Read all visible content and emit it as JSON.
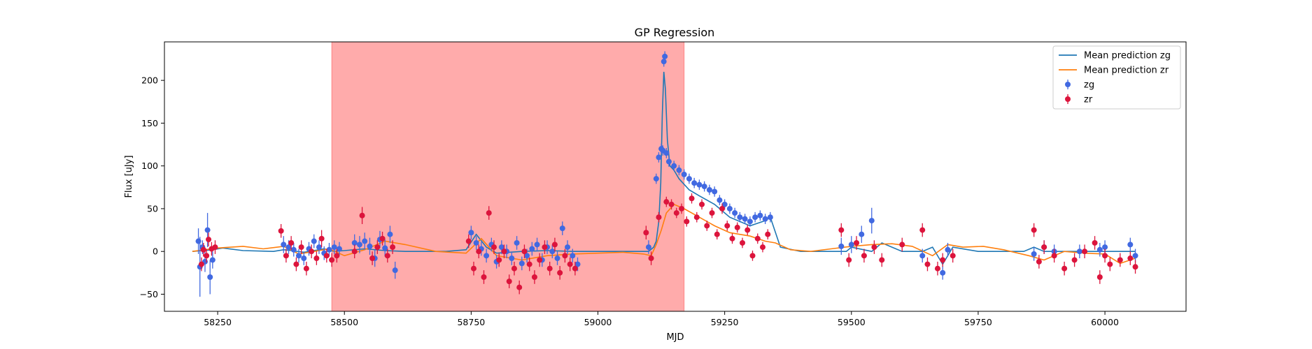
{
  "chart_data": {
    "type": "scatter",
    "title": "GP Regression",
    "xlabel": "MJD",
    "ylabel": "Flux [uJy]",
    "xlim": [
      58145,
      60160
    ],
    "ylim": [
      -70,
      245
    ],
    "xticks": [
      58250,
      58500,
      58750,
      59000,
      59250,
      59500,
      59750,
      60000
    ],
    "yticks": [
      -50,
      0,
      50,
      100,
      150,
      200
    ],
    "grid": false,
    "legend_position": "top-right",
    "shaded_region": {
      "x_start": 58475,
      "x_end": 59170,
      "color": "#ff0000",
      "opacity": 0.33
    },
    "series": [
      {
        "name": "Mean prediction zg",
        "kind": "line",
        "color": "#1f77b4",
        "x": [
          58200,
          58240,
          58260,
          58300,
          58360,
          58380,
          58395,
          58420,
          58440,
          58460,
          58480,
          58500,
          58540,
          58580,
          58620,
          58700,
          58740,
          58760,
          58780,
          58800,
          58850,
          58900,
          58950,
          59000,
          59050,
          59090,
          59100,
          59110,
          59115,
          59120,
          59124,
          59127,
          59130,
          59133,
          59137,
          59142,
          59150,
          59160,
          59180,
          59200,
          59230,
          59260,
          59300,
          59330,
          59340,
          59360,
          59400,
          59450,
          59490,
          59500,
          59540,
          59560,
          59600,
          59640,
          59660,
          59680,
          59700,
          59750,
          59800,
          59840,
          59860,
          59880,
          59900,
          59950,
          60000,
          60020,
          60060
        ],
        "y": [
          0,
          2,
          4,
          1,
          0,
          2,
          1,
          -1,
          1,
          3,
          0,
          1,
          3,
          1,
          0,
          0,
          2,
          20,
          5,
          -2,
          0,
          1,
          0,
          0,
          0,
          0,
          0,
          5,
          12,
          35,
          80,
          160,
          210,
          190,
          130,
          100,
          95,
          85,
          72,
          65,
          55,
          40,
          30,
          36,
          40,
          5,
          0,
          0,
          0,
          5,
          0,
          10,
          0,
          0,
          5,
          -15,
          5,
          0,
          0,
          0,
          5,
          0,
          0,
          0,
          0,
          0,
          0
        ]
      },
      {
        "name": "Mean prediction zr",
        "kind": "line",
        "color": "#ff7f0e",
        "x": [
          58200,
          58250,
          58300,
          58340,
          58380,
          58410,
          58440,
          58470,
          58500,
          58540,
          58580,
          58620,
          58680,
          58740,
          58770,
          58800,
          58850,
          58900,
          58950,
          59000,
          59050,
          59090,
          59105,
          59115,
          59125,
          59135,
          59150,
          59170,
          59200,
          59230,
          59260,
          59300,
          59330,
          59350,
          59380,
          59420,
          59460,
          59500,
          59540,
          59580,
          59620,
          59660,
          59690,
          59720,
          59760,
          59800,
          59850,
          59880,
          59920,
          59960,
          60000,
          60030,
          60060
        ],
        "y": [
          0,
          4,
          6,
          3,
          6,
          -3,
          0,
          3,
          -5,
          2,
          12,
          8,
          0,
          -2,
          15,
          -5,
          -10,
          -5,
          -3,
          -2,
          -1,
          -3,
          -5,
          8,
          25,
          45,
          55,
          50,
          40,
          30,
          22,
          18,
          12,
          10,
          2,
          0,
          3,
          6,
          8,
          9,
          6,
          -5,
          8,
          5,
          6,
          2,
          -5,
          -10,
          0,
          -2,
          -3,
          -14,
          -8
        ]
      },
      {
        "name": "zg",
        "kind": "errorbar-scatter",
        "color": "#4169e1",
        "x": [
          58212,
          58215,
          58220,
          58225,
          58230,
          58235,
          58240,
          58380,
          58390,
          58400,
          58410,
          58420,
          58430,
          58440,
          58450,
          58460,
          58470,
          58480,
          58490,
          58520,
          58530,
          58540,
          58550,
          58560,
          58570,
          58580,
          58590,
          58600,
          58750,
          58760,
          58770,
          58780,
          58790,
          58800,
          58810,
          58820,
          58830,
          58840,
          58850,
          58860,
          58870,
          58880,
          58890,
          58900,
          58910,
          58920,
          58930,
          58940,
          58950,
          58960,
          59100,
          59115,
          59120,
          59125,
          59128,
          59130,
          59132,
          59135,
          59140,
          59150,
          59160,
          59170,
          59180,
          59190,
          59200,
          59210,
          59220,
          59230,
          59240,
          59250,
          59260,
          59270,
          59280,
          59290,
          59300,
          59310,
          59320,
          59330,
          59340,
          59480,
          59500,
          59520,
          59540,
          59640,
          59680,
          59690,
          59860,
          59880,
          59900,
          59950,
          59990,
          60000,
          60050,
          60060
        ],
        "y": [
          12,
          -18,
          5,
          -12,
          25,
          -30,
          -10,
          8,
          5,
          2,
          -5,
          -8,
          3,
          12,
          5,
          -2,
          2,
          5,
          3,
          10,
          8,
          12,
          6,
          -8,
          14,
          4,
          20,
          -22,
          22,
          10,
          3,
          -5,
          8,
          -12,
          5,
          0,
          -8,
          10,
          -14,
          -5,
          3,
          8,
          -10,
          5,
          0,
          -8,
          27,
          5,
          -5,
          -15,
          5,
          85,
          110,
          120,
          118,
          222,
          228,
          115,
          105,
          100,
          95,
          90,
          85,
          80,
          78,
          76,
          72,
          70,
          60,
          55,
          50,
          45,
          40,
          38,
          35,
          40,
          42,
          38,
          40,
          6,
          8,
          20,
          36,
          -5,
          -25,
          2,
          -3,
          5,
          0,
          0,
          2,
          5,
          8,
          -5
        ],
        "err": [
          15,
          35,
          8,
          12,
          20,
          20,
          10,
          10,
          8,
          8,
          8,
          8,
          8,
          8,
          8,
          8,
          8,
          8,
          8,
          10,
          10,
          10,
          10,
          10,
          10,
          10,
          10,
          10,
          8,
          8,
          8,
          8,
          8,
          8,
          8,
          8,
          8,
          8,
          8,
          8,
          8,
          8,
          8,
          8,
          8,
          8,
          8,
          8,
          8,
          8,
          8,
          6,
          6,
          6,
          6,
          6,
          6,
          6,
          6,
          6,
          6,
          6,
          6,
          6,
          6,
          6,
          6,
          6,
          6,
          6,
          6,
          6,
          6,
          6,
          6,
          6,
          6,
          6,
          6,
          10,
          10,
          10,
          15,
          8,
          8,
          8,
          8,
          8,
          8,
          8,
          8,
          8,
          8,
          8
        ]
      },
      {
        "name": "zr",
        "kind": "errorbar-scatter",
        "color": "#dc143c",
        "x": [
          58218,
          58222,
          58228,
          58232,
          58238,
          58245,
          58375,
          58385,
          58395,
          58405,
          58415,
          58425,
          58435,
          58445,
          58455,
          58465,
          58475,
          58485,
          58520,
          58535,
          58555,
          58565,
          58575,
          58585,
          58595,
          58745,
          58755,
          58765,
          58775,
          58785,
          58795,
          58805,
          58815,
          58825,
          58835,
          58845,
          58855,
          58865,
          58875,
          58885,
          58895,
          58905,
          58915,
          58925,
          58935,
          58945,
          58955,
          59095,
          59105,
          59120,
          59135,
          59145,
          59155,
          59165,
          59175,
          59185,
          59195,
          59205,
          59215,
          59225,
          59235,
          59245,
          59255,
          59265,
          59275,
          59285,
          59295,
          59305,
          59315,
          59325,
          59335,
          59480,
          59495,
          59510,
          59525,
          59545,
          59560,
          59600,
          59640,
          59650,
          59670,
          59680,
          59700,
          59860,
          59870,
          59880,
          59900,
          59920,
          59940,
          59960,
          59980,
          59990,
          60000,
          60010,
          60030,
          60050,
          60060
        ],
        "y": [
          -15,
          2,
          -5,
          14,
          3,
          5,
          24,
          -5,
          10,
          -15,
          5,
          -20,
          0,
          -8,
          15,
          -5,
          -10,
          -5,
          0,
          42,
          -8,
          5,
          15,
          -5,
          5,
          12,
          -20,
          0,
          -30,
          45,
          5,
          -10,
          0,
          -35,
          -20,
          -42,
          0,
          -15,
          -30,
          -10,
          5,
          -20,
          8,
          -25,
          -5,
          -15,
          -20,
          22,
          -8,
          40,
          58,
          55,
          45,
          50,
          35,
          62,
          40,
          55,
          30,
          45,
          20,
          50,
          30,
          15,
          28,
          10,
          25,
          -5,
          15,
          5,
          20,
          25,
          -10,
          10,
          -5,
          5,
          -10,
          8,
          25,
          -15,
          -20,
          -10,
          -5,
          25,
          -12,
          5,
          -5,
          -20,
          -10,
          0,
          10,
          -30,
          -5,
          -15,
          -10,
          -8,
          -18
        ],
        "err": [
          8,
          8,
          8,
          8,
          8,
          8,
          8,
          8,
          8,
          8,
          8,
          8,
          8,
          8,
          10,
          8,
          8,
          8,
          8,
          10,
          8,
          8,
          8,
          8,
          8,
          8,
          8,
          8,
          8,
          8,
          8,
          8,
          8,
          8,
          8,
          8,
          8,
          8,
          8,
          8,
          8,
          8,
          8,
          8,
          8,
          8,
          8,
          8,
          8,
          6,
          6,
          6,
          6,
          6,
          6,
          6,
          6,
          6,
          6,
          6,
          6,
          6,
          6,
          6,
          6,
          6,
          6,
          6,
          6,
          6,
          6,
          8,
          8,
          8,
          8,
          8,
          8,
          8,
          8,
          8,
          8,
          8,
          8,
          8,
          8,
          8,
          8,
          8,
          8,
          8,
          8,
          8,
          8,
          8,
          8,
          8,
          8
        ]
      }
    ],
    "legend": [
      {
        "label": "Mean prediction zg",
        "marker": "line",
        "color": "#1f77b4"
      },
      {
        "label": "Mean prediction zr",
        "marker": "line",
        "color": "#ff7f0e"
      },
      {
        "label": "zg",
        "marker": "errorbar-dot",
        "color": "#4169e1"
      },
      {
        "label": "zr",
        "marker": "errorbar-dot",
        "color": "#dc143c"
      }
    ]
  }
}
